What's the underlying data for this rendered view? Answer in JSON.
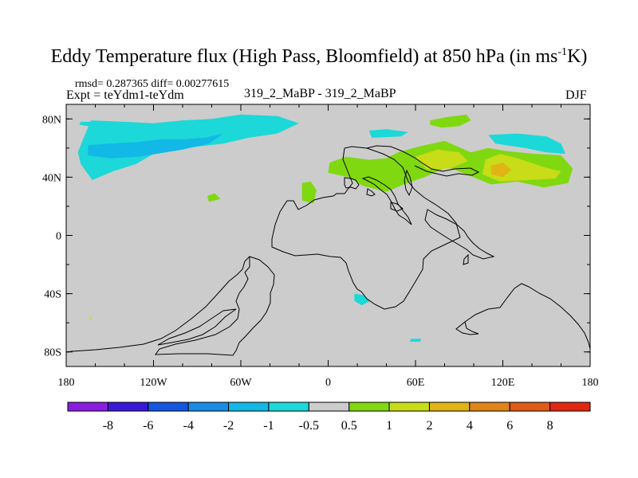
{
  "chart_data": {
    "type": "heatmap",
    "title": "Eddy Temperature flux (High Pass, Bloomfield) at 850 hPa (in ms",
    "title_superscript": "-1",
    "title_suffix": "K)",
    "stats_text": "rmsd= 0.287365  diff= 0.00277615",
    "expt_text": "Expt = teYdm1-teYdm",
    "center_label": "319_2_MaBP - 319_2_MaBP",
    "season": "DJF",
    "x_ticks": [
      {
        "value": -180,
        "label": "180"
      },
      {
        "value": -120,
        "label": "120W"
      },
      {
        "value": -60,
        "label": "60W"
      },
      {
        "value": 0,
        "label": "0"
      },
      {
        "value": 60,
        "label": "60E"
      },
      {
        "value": 120,
        "label": "120E"
      },
      {
        "value": 180,
        "label": "180"
      }
    ],
    "y_ticks": [
      {
        "value": 80,
        "label": "80N"
      },
      {
        "value": 40,
        "label": "40N"
      },
      {
        "value": 0,
        "label": "0"
      },
      {
        "value": -40,
        "label": "40S"
      },
      {
        "value": -80,
        "label": "80S"
      }
    ],
    "xlim": [
      -180,
      180
    ],
    "ylim": [
      -90,
      90
    ],
    "levels": [
      -8,
      -6,
      -4,
      -2,
      -1,
      -0.5,
      0.5,
      1,
      2,
      4,
      6,
      8
    ],
    "level_labels": [
      "-8",
      "-6",
      "-4",
      "-2",
      "-1",
      "-0.5",
      "0.5",
      "1",
      "2",
      "4",
      "6",
      "8"
    ],
    "colors": [
      "#8a1ee0",
      "#3a18d8",
      "#1456e0",
      "#1a8ce6",
      "#12b8e6",
      "#1cd8d8",
      "#cccccc",
      "#80d810",
      "#c8dc18",
      "#e0b414",
      "#e08418",
      "#e05a18",
      "#e02810"
    ],
    "regions": [
      {
        "category": "-1 to -0.5",
        "color_index": 5,
        "points": [
          [
            -163,
            79
          ],
          [
            -140,
            78
          ],
          [
            -120,
            77
          ],
          [
            -100,
            79
          ],
          [
            -80,
            80
          ],
          [
            -60,
            83
          ],
          [
            -35,
            82
          ],
          [
            -20,
            77
          ],
          [
            -35,
            70
          ],
          [
            -55,
            67
          ],
          [
            -72,
            63
          ],
          [
            -90,
            61
          ],
          [
            -108,
            59
          ],
          [
            -120,
            56
          ],
          [
            -132,
            49
          ],
          [
            -148,
            44
          ],
          [
            -162,
            38
          ],
          [
            -170,
            49
          ],
          [
            -172,
            57
          ],
          [
            -168,
            67
          ]
        ]
      },
      {
        "category": "-2 to -1",
        "color_index": 4,
        "points": [
          [
            -165,
            62
          ],
          [
            -150,
            63
          ],
          [
            -132,
            64
          ],
          [
            -115,
            66
          ],
          [
            -100,
            66
          ],
          [
            -85,
            67
          ],
          [
            -72,
            70
          ],
          [
            -82,
            63
          ],
          [
            -100,
            59
          ],
          [
            -118,
            56
          ],
          [
            -130,
            54
          ],
          [
            -150,
            53
          ],
          [
            -165,
            55
          ]
        ]
      },
      {
        "category": "-1 to -0.5",
        "color_index": 5,
        "points": [
          [
            -170,
            78
          ],
          [
            -160,
            78
          ],
          [
            -158,
            76
          ],
          [
            -165,
            75
          ],
          [
            -171,
            76
          ]
        ]
      },
      {
        "category": "-1 to -0.5",
        "color_index": 5,
        "points": [
          [
            28,
            72
          ],
          [
            40,
            73
          ],
          [
            55,
            71
          ],
          [
            50,
            68
          ],
          [
            30,
            67
          ]
        ]
      },
      {
        "category": "-1 to -0.5",
        "color_index": 5,
        "points": [
          [
            110,
            69
          ],
          [
            130,
            70
          ],
          [
            150,
            68
          ],
          [
            160,
            63
          ],
          [
            163,
            56
          ],
          [
            150,
            57
          ],
          [
            135,
            60
          ],
          [
            115,
            63
          ]
        ]
      },
      {
        "category": "0.5 to 1",
        "color_index": 7,
        "points": [
          [
            1,
            50
          ],
          [
            12,
            54
          ],
          [
            28,
            52
          ],
          [
            40,
            53
          ],
          [
            48,
            57
          ],
          [
            62,
            61
          ],
          [
            80,
            65
          ],
          [
            98,
            57
          ],
          [
            110,
            60
          ],
          [
            122,
            58
          ],
          [
            142,
            56
          ],
          [
            160,
            55
          ],
          [
            168,
            46
          ],
          [
            165,
            36
          ],
          [
            148,
            33
          ],
          [
            130,
            37
          ],
          [
            112,
            35
          ],
          [
            95,
            42
          ],
          [
            82,
            47
          ],
          [
            66,
            40
          ],
          [
            52,
            35
          ],
          [
            40,
            30
          ],
          [
            24,
            34
          ],
          [
            14,
            40
          ],
          [
            0,
            43
          ]
        ]
      },
      {
        "category": "1 to 2",
        "color_index": 8,
        "points": [
          [
            60,
            54
          ],
          [
            75,
            59
          ],
          [
            90,
            57
          ],
          [
            96,
            51
          ],
          [
            84,
            46
          ],
          [
            68,
            45
          ]
        ]
      },
      {
        "category": "1 to 2",
        "color_index": 8,
        "points": [
          [
            108,
            52
          ],
          [
            118,
            56
          ],
          [
            130,
            53
          ],
          [
            148,
            47
          ],
          [
            160,
            44
          ],
          [
            156,
            39
          ],
          [
            138,
            38
          ],
          [
            118,
            37
          ],
          [
            106,
            42
          ]
        ]
      },
      {
        "category": "2 to 4",
        "color_index": 9,
        "points": [
          [
            112,
            48
          ],
          [
            120,
            50
          ],
          [
            126,
            45
          ],
          [
            120,
            40
          ],
          [
            112,
            42
          ]
        ]
      },
      {
        "category": "0.5 to 1",
        "color_index": 7,
        "points": [
          [
            70,
            79
          ],
          [
            80,
            81
          ],
          [
            95,
            83
          ],
          [
            98,
            79
          ],
          [
            90,
            75
          ],
          [
            78,
            74
          ],
          [
            70,
            76
          ]
        ]
      },
      {
        "category": "0.5 to 1",
        "color_index": 7,
        "points": [
          [
            -83,
            27
          ],
          [
            -78,
            29
          ],
          [
            -74,
            25
          ],
          [
            -82,
            23
          ]
        ]
      },
      {
        "category": "0.5 to 1",
        "color_index": 7,
        "points": [
          [
            -18,
            36
          ],
          [
            -12,
            37
          ],
          [
            -8,
            31
          ],
          [
            -10,
            22
          ],
          [
            -18,
            24
          ]
        ]
      },
      {
        "category": "-1 to -0.5",
        "color_index": 5,
        "points": [
          [
            18,
            -40
          ],
          [
            24,
            -41
          ],
          [
            29,
            -45
          ],
          [
            23,
            -48
          ],
          [
            18,
            -45
          ]
        ]
      },
      {
        "category": "-1 to -0.5",
        "color_index": 5,
        "points": [
          [
            57,
            -71
          ],
          [
            64,
            -71
          ],
          [
            63,
            -73
          ],
          [
            56,
            -73
          ]
        ]
      }
    ]
  }
}
